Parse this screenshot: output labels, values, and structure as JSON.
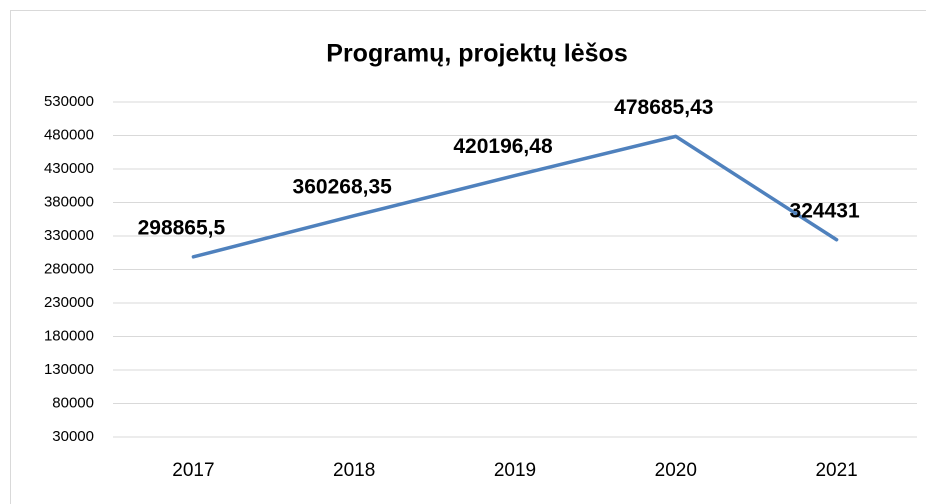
{
  "chart_data": {
    "type": "line",
    "title": "Programų, projektų lėšos",
    "categories": [
      "2017",
      "2018",
      "2019",
      "2020",
      "2021"
    ],
    "values": [
      298865.5,
      360268.35,
      420196.48,
      478685.43,
      324431
    ],
    "value_labels": [
      "298865,5",
      "360268,35",
      "420196,48",
      "478685,43",
      "324431"
    ],
    "color": "#4f81bd",
    "ylim": [
      30000,
      530000
    ],
    "yticks": [
      30000,
      80000,
      130000,
      180000,
      230000,
      280000,
      330000,
      380000,
      430000,
      480000,
      530000
    ],
    "grid": true
  }
}
